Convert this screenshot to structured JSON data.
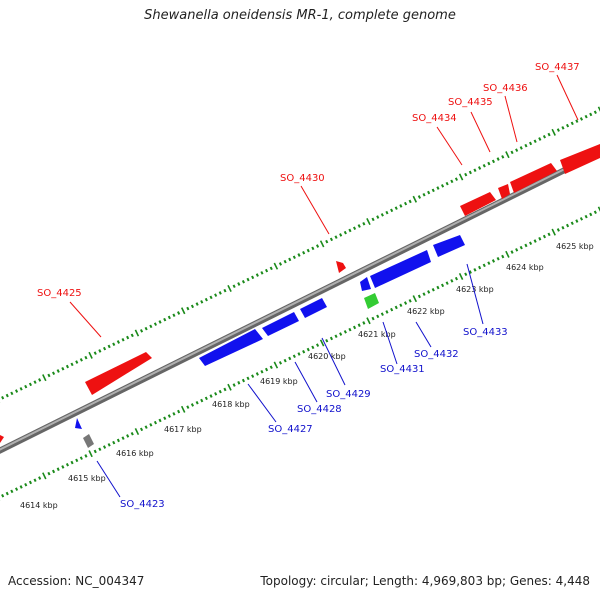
{
  "title": "Shewanella oneidensis MR-1, complete genome",
  "footer": {
    "accession": "Accession: NC_004347",
    "summary": "Topology: circular; Length: 4,969,803 bp; Genes: 4,448"
  },
  "colors": {
    "forward_gene": "#ee1111",
    "reverse_gene": "#1111ee",
    "rna_gene": "#33cc33",
    "other_gene": "#777777",
    "backbone": "#8a8a8a",
    "tick": "#1a8a1a",
    "forward_label": "#ee1111",
    "reverse_label": "#1111cc"
  },
  "tick_labels": [
    "4614 kbp",
    "4615 kbp",
    "4616 kbp",
    "4617 kbp",
    "4618 kbp",
    "4619 kbp",
    "4620 kbp",
    "4621 kbp",
    "4622 kbp",
    "4623 kbp",
    "4624 kbp",
    "4625 kbp"
  ],
  "forward_genes": [
    "SO_4425",
    "SO_4430",
    "SO_4434",
    "SO_4435",
    "SO_4436",
    "SO_4437"
  ],
  "reverse_genes": [
    "SO_4423",
    "SO_4427",
    "SO_4428",
    "SO_4429",
    "SO_4431",
    "SO_4432",
    "SO_4433"
  ]
}
